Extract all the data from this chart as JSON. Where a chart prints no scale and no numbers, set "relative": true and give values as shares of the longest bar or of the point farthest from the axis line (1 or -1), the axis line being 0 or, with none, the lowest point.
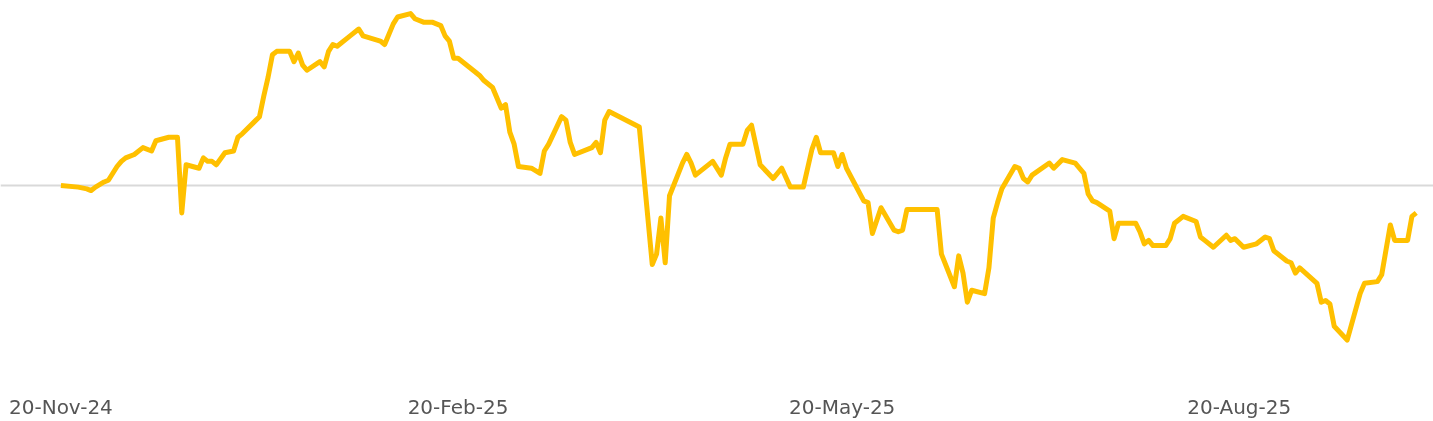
{
  "chart_data": {
    "type": "line",
    "relative": true,
    "grid": false,
    "marker": "none",
    "line_style": "solid",
    "xlim": [
      "2024-11-06",
      "2025-10-04"
    ],
    "xticks": [
      {
        "value": "2024-11-20",
        "label": "20-Nov-24"
      },
      {
        "value": "2025-02-20",
        "label": "20-Feb-25"
      },
      {
        "value": "2025-05-20",
        "label": "20-May-25"
      },
      {
        "value": "2025-08-20",
        "label": "20-Aug-25"
      }
    ],
    "ref_lines": [
      {
        "axis": "y",
        "value": 0,
        "color": "#d9d9d9"
      }
    ],
    "series": [
      {
        "color": "#ffc000",
        "x": [
          "2024-11-20",
          "2024-11-24",
          "2024-11-26",
          "2024-11-27",
          "2024-11-28",
          "2024-11-30",
          "2024-12-01",
          "2024-12-03",
          "2024-12-04",
          "2024-12-05",
          "2024-12-07",
          "2024-12-09",
          "2024-12-11",
          "2024-12-12",
          "2024-12-15",
          "2024-12-16",
          "2024-12-17",
          "2024-12-18",
          "2024-12-19",
          "2024-12-22",
          "2024-12-23",
          "2024-12-24",
          "2024-12-25",
          "2024-12-26",
          "2024-12-28",
          "2024-12-30",
          "2024-12-31",
          "2025-01-01",
          "2025-01-05",
          "2025-01-06",
          "2025-01-07",
          "2025-01-08",
          "2025-01-09",
          "2025-01-12",
          "2025-01-13",
          "2025-01-14",
          "2025-01-15",
          "2025-01-16",
          "2025-01-19",
          "2025-01-20",
          "2025-01-21",
          "2025-01-22",
          "2025-01-23",
          "2025-01-26",
          "2025-01-28",
          "2025-01-29",
          "2025-02-02",
          "2025-02-03",
          "2025-02-05",
          "2025-02-06",
          "2025-02-09",
          "2025-02-10",
          "2025-02-12",
          "2025-02-14",
          "2025-02-16",
          "2025-02-17",
          "2025-02-18",
          "2025-02-19",
          "2025-02-20",
          "2025-02-24",
          "2025-02-25",
          "2025-02-26",
          "2025-02-28",
          "2025-03-02",
          "2025-03-03",
          "2025-03-04",
          "2025-03-05",
          "2025-03-06",
          "2025-03-09",
          "2025-03-11",
          "2025-03-12",
          "2025-03-13",
          "2025-03-16",
          "2025-03-17",
          "2025-03-18",
          "2025-03-19",
          "2025-03-23",
          "2025-03-24",
          "2025-03-25",
          "2025-03-26",
          "2025-03-27",
          "2025-04-03",
          "2025-04-06",
          "2025-04-07",
          "2025-04-08",
          "2025-04-09",
          "2025-04-10",
          "2025-04-13",
          "2025-04-14",
          "2025-04-15",
          "2025-04-16",
          "2025-04-20",
          "2025-04-22",
          "2025-04-23",
          "2025-04-24",
          "2025-04-27",
          "2025-04-28",
          "2025-04-29",
          "2025-05-01",
          "2025-05-04",
          "2025-05-06",
          "2025-05-08",
          "2025-05-11",
          "2025-05-13",
          "2025-05-14",
          "2025-05-15",
          "2025-05-18",
          "2025-05-19",
          "2025-05-20",
          "2025-05-21",
          "2025-05-25",
          "2025-05-26",
          "2025-05-27",
          "2025-05-29",
          "2025-06-01",
          "2025-06-02",
          "2025-06-03",
          "2025-06-04",
          "2025-06-11",
          "2025-06-12",
          "2025-06-15",
          "2025-06-16",
          "2025-06-17",
          "2025-06-18",
          "2025-06-19",
          "2025-06-22",
          "2025-06-23",
          "2025-06-24",
          "2025-06-25",
          "2025-06-26",
          "2025-06-29",
          "2025-06-30",
          "2025-07-01",
          "2025-07-02",
          "2025-07-03",
          "2025-07-07",
          "2025-07-08",
          "2025-07-10",
          "2025-07-13",
          "2025-07-15",
          "2025-07-16",
          "2025-07-17",
          "2025-07-18",
          "2025-07-21",
          "2025-07-22",
          "2025-07-23",
          "2025-07-27",
          "2025-07-28",
          "2025-07-29",
          "2025-07-30",
          "2025-07-31",
          "2025-08-03",
          "2025-08-04",
          "2025-08-05",
          "2025-08-07",
          "2025-08-10",
          "2025-08-11",
          "2025-08-12",
          "2025-08-14",
          "2025-08-17",
          "2025-08-18",
          "2025-08-19",
          "2025-08-21",
          "2025-08-24",
          "2025-08-26",
          "2025-08-27",
          "2025-08-28",
          "2025-08-31",
          "2025-09-01",
          "2025-09-02",
          "2025-09-03",
          "2025-09-07",
          "2025-09-08",
          "2025-09-09",
          "2025-09-10",
          "2025-09-11",
          "2025-09-14",
          "2025-09-15",
          "2025-09-17",
          "2025-09-18",
          "2025-09-21",
          "2025-09-22",
          "2025-09-24",
          "2025-09-25",
          "2025-09-28",
          "2025-09-29",
          "2025-09-30"
        ],
        "values": [
          0,
          -0.01,
          -0.02,
          -0.03,
          -0.01,
          0.02,
          0.03,
          0.11,
          0.14,
          0.16,
          0.18,
          0.22,
          0.2,
          0.26,
          0.28,
          0.28,
          0.28,
          -0.16,
          0.12,
          0.1,
          0.16,
          0.14,
          0.14,
          0.12,
          0.19,
          0.2,
          0.28,
          0.3,
          0.4,
          0.52,
          0.63,
          0.76,
          0.78,
          0.78,
          0.72,
          0.77,
          0.7,
          0.67,
          0.72,
          0.69,
          0.78,
          0.82,
          0.81,
          0.87,
          0.91,
          0.87,
          0.84,
          0.82,
          0.94,
          0.98,
          1.0,
          0.97,
          0.95,
          0.95,
          0.93,
          0.87,
          0.84,
          0.74,
          0.74,
          0.66,
          0.64,
          0.61,
          0.57,
          0.45,
          0.47,
          0.31,
          0.24,
          0.11,
          0.1,
          0.07,
          0.2,
          0.24,
          0.4,
          0.38,
          0.25,
          0.18,
          0.22,
          0.25,
          0.19,
          0.38,
          0.43,
          0.34,
          -0.46,
          -0.4,
          -0.19,
          -0.45,
          -0.06,
          0.13,
          0.18,
          0.13,
          0.06,
          0.14,
          0.06,
          0.16,
          0.24,
          0.24,
          0.32,
          0.35,
          0.12,
          0.04,
          0.1,
          -0.01,
          -0.01,
          0.21,
          0.28,
          0.19,
          0.19,
          0.11,
          0.18,
          0.1,
          -0.09,
          -0.1,
          -0.28,
          -0.13,
          -0.26,
          -0.27,
          -0.26,
          -0.14,
          -0.14,
          -0.4,
          -0.59,
          -0.41,
          -0.51,
          -0.68,
          -0.61,
          -0.63,
          -0.48,
          -0.19,
          -0.1,
          -0.02,
          0.11,
          0.1,
          0.04,
          0.02,
          0.06,
          0.13,
          0.1,
          0.15,
          0.13,
          0.07,
          -0.05,
          -0.09,
          -0.1,
          -0.15,
          -0.31,
          -0.22,
          -0.22,
          -0.27,
          -0.34,
          -0.32,
          -0.35,
          -0.35,
          -0.31,
          -0.22,
          -0.18,
          -0.21,
          -0.3,
          -0.32,
          -0.36,
          -0.29,
          -0.32,
          -0.31,
          -0.36,
          -0.34,
          -0.3,
          -0.31,
          -0.38,
          -0.44,
          -0.45,
          -0.51,
          -0.48,
          -0.57,
          -0.68,
          -0.67,
          -0.69,
          -0.82,
          -0.9,
          -0.81,
          -0.63,
          -0.57,
          -0.56,
          -0.52,
          -0.23,
          -0.32,
          -0.32,
          -0.18,
          -0.16
        ]
      }
    ]
  }
}
